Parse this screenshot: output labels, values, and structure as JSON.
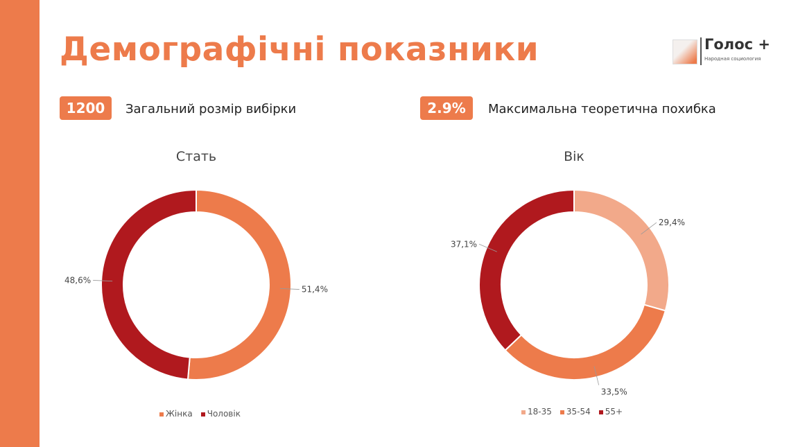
{
  "title": "Демографічні показники",
  "logo": {
    "name": "Голос +",
    "subtitle": "Народная социология"
  },
  "stats": [
    {
      "value": "1200",
      "label": "Загальний розмір вибірки"
    },
    {
      "value": "2.9%",
      "label": "Максимальна теоретична похибка"
    }
  ],
  "colors": {
    "accent": "#ED7B4B",
    "dark_red": "#B0191E",
    "light": "#F2A98A"
  },
  "chart_data": [
    {
      "type": "pie",
      "donut": true,
      "title": "Стать",
      "legend": "bottom",
      "categories": [
        "Жінка",
        "Чоловік"
      ],
      "values": [
        51.4,
        48.6
      ],
      "labels": [
        "51,4%",
        "48,6%"
      ],
      "colors": [
        "#ED7B4B",
        "#B0191E"
      ]
    },
    {
      "type": "pie",
      "donut": true,
      "title": "Вік",
      "legend": "bottom",
      "categories": [
        "18-35",
        "35-54",
        "55+"
      ],
      "values": [
        29.4,
        33.5,
        37.1
      ],
      "labels": [
        "29,4%",
        "33,5%",
        "37,1%"
      ],
      "colors": [
        "#F2A98A",
        "#ED7B4B",
        "#B0191E"
      ]
    }
  ]
}
